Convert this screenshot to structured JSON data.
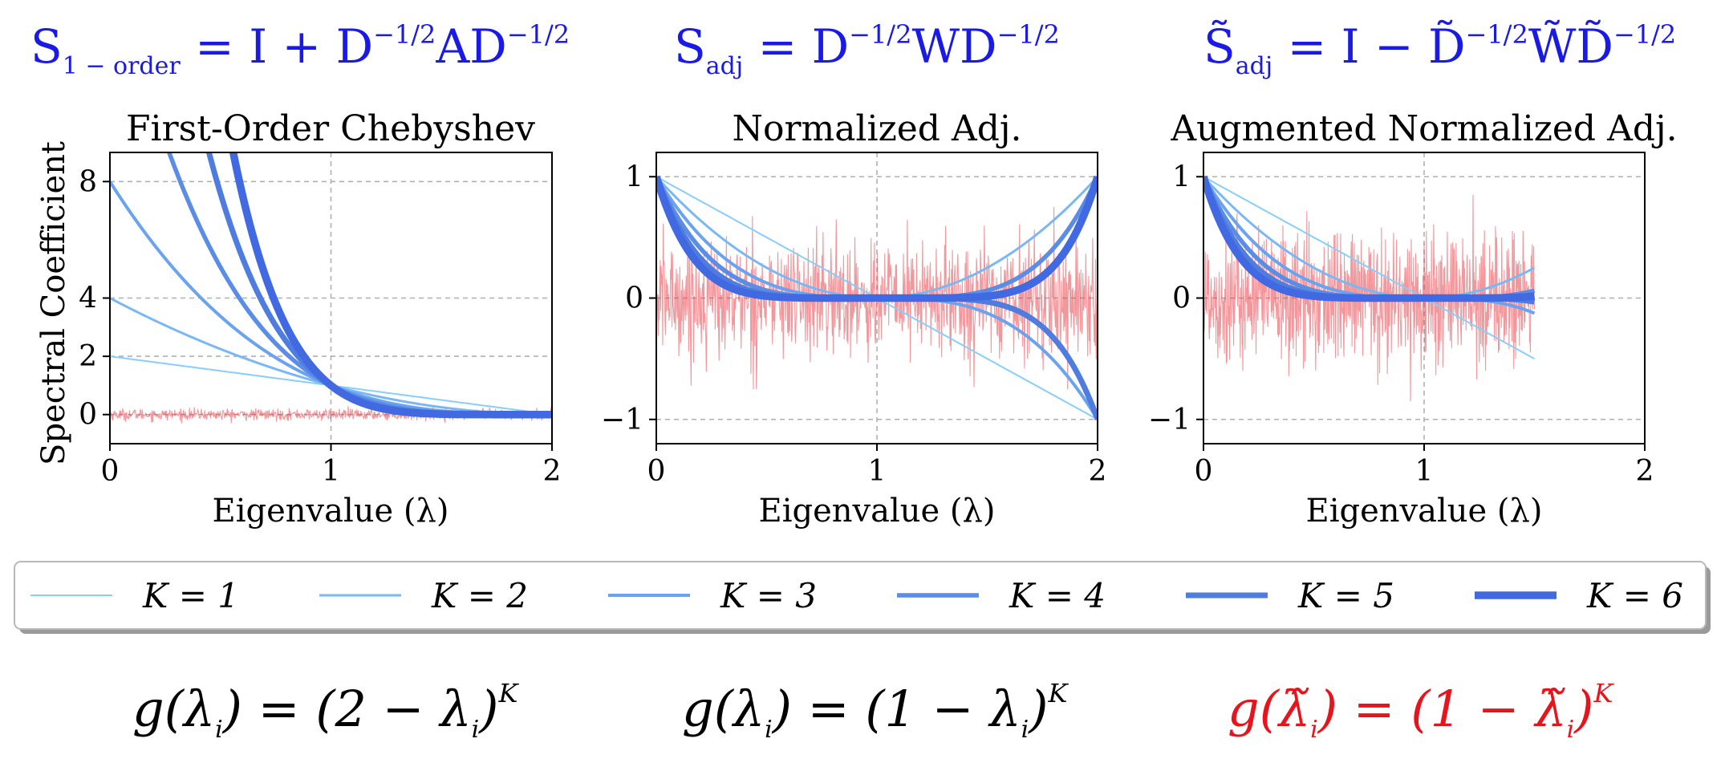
{
  "formulas_top": {
    "panel1": {
      "base": "S",
      "sub": "1 − order",
      "rhs_a": " = I + D",
      "sup1": "−1/2",
      "rhs_b": "AD",
      "sup2": "−1/2"
    },
    "panel2": {
      "base": "S",
      "sub": "adj",
      "rhs_a": " = D",
      "sup1": "−1/2",
      "rhs_b": "WD",
      "sup2": "−1/2"
    },
    "panel3": {
      "base": "S̃",
      "sub": "adj",
      "rhs_a": " = I − D̃",
      "sup1": "−1/2",
      "rhs_b": "W̃D̃",
      "sup2": "−1/2"
    }
  },
  "formulas_bottom": {
    "panel1": {
      "lhs": "g(λ",
      "sub1": "i",
      "mid": ") = (2 − λ",
      "sub2": "i",
      "end": ")",
      "sup": "K",
      "color": "#000000"
    },
    "panel2": {
      "lhs": "g(λ",
      "sub1": "i",
      "mid": ") = (1 − λ",
      "sub2": "i",
      "end": ")",
      "sup": "K",
      "color": "#000000"
    },
    "panel3": {
      "lhs": "g(λ̃",
      "sub1": "i",
      "mid": ") = (1 − λ̃",
      "sub2": "i",
      "end": ")",
      "sup": "K",
      "color": "#e8141c"
    }
  },
  "colors": {
    "K": [
      "#87cefa",
      "#79b8f5",
      "#6aa3ef",
      "#5b8de6",
      "#4f7ddf",
      "#4169e1"
    ],
    "noise": "#e8414a",
    "grid": "#b0b0b0"
  },
  "legend": {
    "placement": "bottom",
    "entries": [
      "K = 1",
      "K = 2",
      "K = 3",
      "K = 4",
      "K = 5",
      "K = 6"
    ]
  },
  "chart_data": [
    {
      "type": "line",
      "title": "First-Order Chebyshev",
      "xlabel": "Eigenvalue (λ)",
      "ylabel": "Spectral Coefficient",
      "xlim": [
        0,
        2
      ],
      "ylim": [
        -1,
        9
      ],
      "xticks": [
        "0",
        "1",
        "2"
      ],
      "yticks": [
        "0",
        "2",
        "4",
        "8"
      ],
      "ytick_values": [
        0,
        2,
        4,
        8
      ],
      "grid": true,
      "function": "(2 - x)^K",
      "x_domain": [
        0,
        2
      ],
      "series": [
        {
          "name": "K = 1",
          "K": 1,
          "x": [
            0,
            0.5,
            1,
            1.5,
            2
          ],
          "values": [
            2,
            1.5,
            1,
            0.5,
            0
          ]
        },
        {
          "name": "K = 2",
          "K": 2,
          "x": [
            0,
            0.5,
            1,
            1.5,
            2
          ],
          "values": [
            4,
            2.25,
            1,
            0.25,
            0
          ]
        },
        {
          "name": "K = 3",
          "K": 3,
          "x": [
            0,
            0.5,
            1,
            1.5,
            2
          ],
          "values": [
            8,
            3.375,
            1,
            0.125,
            0
          ]
        },
        {
          "name": "K = 4",
          "K": 4,
          "x": [
            0.25,
            0.5,
            1,
            1.5,
            2
          ],
          "values": [
            9.38,
            5.06,
            1,
            0.0625,
            0
          ]
        },
        {
          "name": "K = 5",
          "K": 5,
          "x": [
            0.45,
            0.5,
            1,
            1.5,
            2
          ],
          "values": [
            8.95,
            7.59,
            1,
            0.03,
            0
          ]
        },
        {
          "name": "K = 6",
          "K": 6,
          "x": [
            0.55,
            0.75,
            1,
            1.5,
            2
          ],
          "values": [
            9.29,
            3.81,
            1,
            0.016,
            0
          ]
        }
      ],
      "noise": {
        "x_range": [
          0,
          2
        ],
        "amplitude": 0.3
      }
    },
    {
      "type": "line",
      "title": "Normalized Adj.",
      "xlabel": "Eigenvalue (λ)",
      "ylabel": "",
      "xlim": [
        0,
        2
      ],
      "ylim": [
        -1.2,
        1.2
      ],
      "xticks": [
        "0",
        "1",
        "2"
      ],
      "yticks": [
        "−1",
        "0",
        "1"
      ],
      "ytick_values": [
        -1,
        0,
        1
      ],
      "grid": true,
      "function": "(1 - x)^K",
      "x_domain": [
        0,
        2
      ],
      "series": [
        {
          "name": "K = 1",
          "K": 1,
          "x": [
            0,
            1,
            2
          ],
          "values": [
            1,
            0,
            -1
          ]
        },
        {
          "name": "K = 2",
          "K": 2,
          "x": [
            0,
            1,
            2
          ],
          "values": [
            1,
            0,
            1
          ]
        },
        {
          "name": "K = 3",
          "K": 3,
          "x": [
            0,
            1,
            2
          ],
          "values": [
            1,
            0,
            -1
          ]
        },
        {
          "name": "K = 4",
          "K": 4,
          "x": [
            0,
            1,
            2
          ],
          "values": [
            1,
            0,
            1
          ]
        },
        {
          "name": "K = 5",
          "K": 5,
          "x": [
            0,
            1,
            2
          ],
          "values": [
            1,
            0,
            -1
          ]
        },
        {
          "name": "K = 6",
          "K": 6,
          "x": [
            0,
            1,
            2
          ],
          "values": [
            1,
            0,
            1
          ]
        }
      ],
      "noise": {
        "x_range": [
          0,
          2
        ],
        "amplitude": 0.75
      }
    },
    {
      "type": "line",
      "title": "Augmented Normalized Adj.",
      "xlabel": "Eigenvalue (λ)",
      "ylabel": "",
      "xlim": [
        0,
        2
      ],
      "ylim": [
        -1.2,
        1.2
      ],
      "xticks": [
        "0",
        "1",
        "2"
      ],
      "yticks": [
        "−1",
        "0",
        "1"
      ],
      "ytick_values": [
        -1,
        0,
        1
      ],
      "grid": true,
      "function": "(1 - x)^K",
      "x_domain": [
        0,
        1.5
      ],
      "series": [
        {
          "name": "K = 1",
          "K": 1,
          "x": [
            0,
            1,
            1.5
          ],
          "values": [
            1,
            0,
            -0.5
          ]
        },
        {
          "name": "K = 2",
          "K": 2,
          "x": [
            0,
            1,
            1.5
          ],
          "values": [
            1,
            0,
            0.25
          ]
        },
        {
          "name": "K = 3",
          "K": 3,
          "x": [
            0,
            1,
            1.5
          ],
          "values": [
            1,
            0,
            -0.125
          ]
        },
        {
          "name": "K = 4",
          "K": 4,
          "x": [
            0,
            1,
            1.5
          ],
          "values": [
            1,
            0,
            0.0625
          ]
        },
        {
          "name": "K = 5",
          "K": 5,
          "x": [
            0,
            1,
            1.5
          ],
          "values": [
            1,
            0,
            -0.031
          ]
        },
        {
          "name": "K = 6",
          "K": 6,
          "x": [
            0,
            1,
            1.5
          ],
          "values": [
            1,
            0,
            0.016
          ]
        }
      ],
      "noise": {
        "x_range": [
          0,
          1.5
        ],
        "amplitude": 0.85
      }
    }
  ]
}
